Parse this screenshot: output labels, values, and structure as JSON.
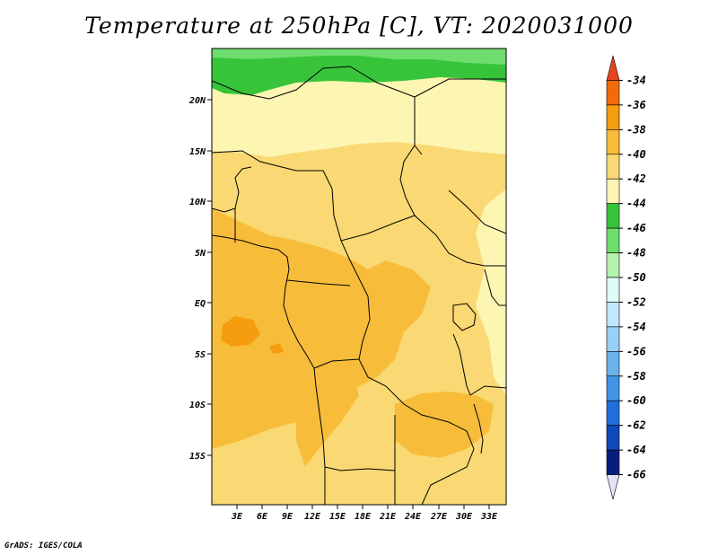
{
  "title": "Temperature at 250hPa [C], VT: 2020031000",
  "credit": "GrADS: IGES/COLA",
  "map": {
    "lat_labels": [
      "20N",
      "15N",
      "10N",
      "5N",
      "EQ",
      "5S",
      "10S",
      "15S"
    ],
    "lon_labels": [
      "3E",
      "6E",
      "9E",
      "12E",
      "15E",
      "18E",
      "21E",
      "24E",
      "27E",
      "30E",
      "33E"
    ]
  },
  "colorbar": {
    "labels": [
      "-34",
      "-36",
      "-38",
      "-40",
      "-42",
      "-44",
      "-46",
      "-48",
      "-50",
      "-52",
      "-54",
      "-56",
      "-58",
      "-60",
      "-62",
      "-64",
      "-66"
    ],
    "colors": [
      "#e8431f",
      "#f26a0a",
      "#f59d0e",
      "#f7bd3a",
      "#fad873",
      "#fdf5b2",
      "#38c43a",
      "#6edd6e",
      "#b4f2ad",
      "#e0fbf6",
      "#c2e7fb",
      "#99cff4",
      "#6bb1ec",
      "#4294e6",
      "#1f6fdb",
      "#0f48b8",
      "#081e7d",
      "#e2e2fb"
    ]
  },
  "colors": {
    "field_base": "#fad873",
    "field_cool": "#fdf5b2",
    "field_warm": "#f7bd3a",
    "field_hot": "#f59d0e",
    "green_dark": "#38c43a",
    "green_light": "#6edd6e"
  }
}
